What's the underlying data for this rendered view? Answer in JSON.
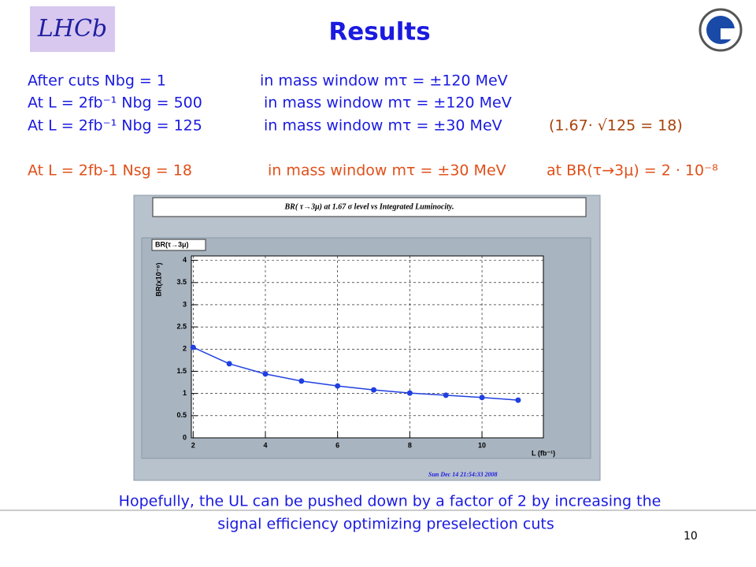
{
  "header": {
    "title": "Results",
    "logo_text": "LHCb"
  },
  "lines": [
    {
      "segments": [
        "After cuts    Nbg = 1",
        "in mass window  mτ = ±120 MeV"
      ]
    },
    {
      "segments": [
        "At L = 2fb⁻¹   Nbg = 500",
        "in mass window mτ = ±120 MeV"
      ]
    },
    {
      "segments": [
        "At L = 2fb⁻¹   Nbg = 125",
        "in mass window mτ = ±30 MeV",
        "(1.67· √125 = 18)"
      ]
    },
    {
      "segments": [
        "At L = 2fb-1   Nsg = 18",
        "in mass window mτ = ±30 MeV",
        "at BR(τ→3μ) = 2 · 10⁻⁸"
      ]
    }
  ],
  "chart_data": {
    "type": "line",
    "title": "BR( τ→3μ) at 1.67 σ level vs Integrated Luminocity.",
    "x_label": "L (fb⁻¹)",
    "y_label": "BR(x10⁻⁸)",
    "timestamp": "Sun Dec 14 21:54:33 2008",
    "x": [
      2,
      3,
      4,
      5,
      6,
      7,
      8,
      9,
      10,
      11
    ],
    "series": [
      {
        "name": "BR(τ→3μ)",
        "color": "#2040e0",
        "values": [
          2.04,
          1.67,
          1.44,
          1.28,
          1.17,
          1.08,
          1.01,
          0.96,
          0.91,
          0.85
        ]
      }
    ],
    "xlim": [
      1.95,
      11.7
    ],
    "xticks": [
      2,
      4,
      6,
      8,
      10
    ],
    "ylim": [
      0,
      4.1
    ],
    "yticks": [
      0,
      0.5,
      1,
      1.5,
      2,
      2.5,
      3,
      3.5,
      4
    ],
    "grid": true
  },
  "footer": {
    "text_lines": [
      "Hopefully, the UL can be pushed down by a factor of 2 by increasing the",
      "signal efficiency optimizing preselection cuts"
    ],
    "page_number": "10"
  }
}
